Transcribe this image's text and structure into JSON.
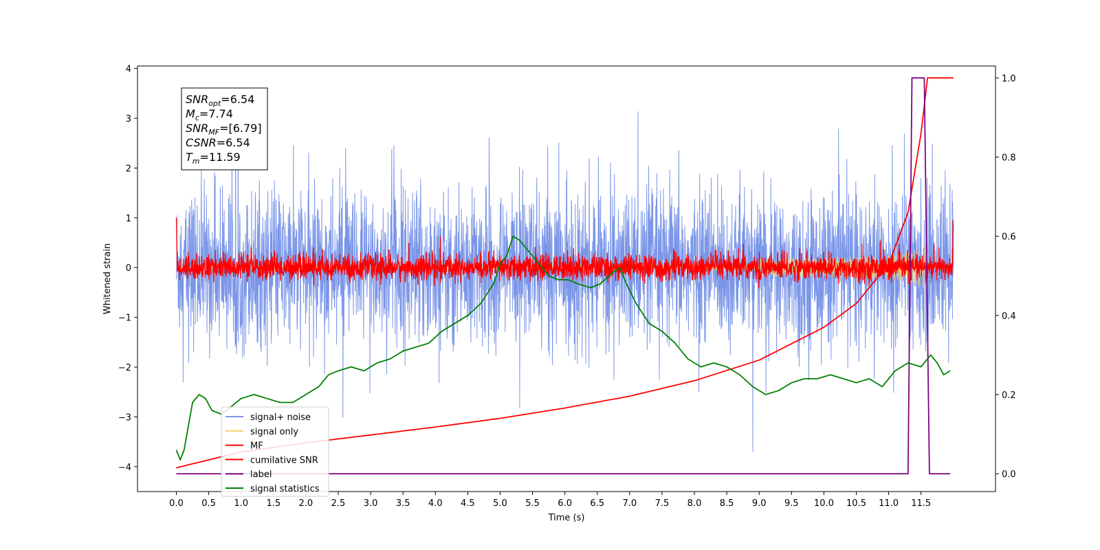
{
  "chart_data": {
    "type": "line",
    "title": "",
    "xlabel": "Time (s)",
    "ylabel": "Whitened strain",
    "y2label": "",
    "xlim": [
      -0.6,
      12.65
    ],
    "ylim": [
      -4.5,
      4.05
    ],
    "y2lim": [
      -0.045,
      1.03
    ],
    "x_ticks": [
      0.0,
      0.5,
      1.0,
      1.5,
      2.0,
      2.5,
      3.0,
      3.5,
      4.0,
      4.5,
      5.0,
      5.5,
      6.0,
      6.5,
      7.0,
      7.5,
      8.0,
      8.5,
      9.0,
      9.5,
      10.0,
      10.5,
      11.0,
      11.5
    ],
    "x_tick_labels": [
      "0.0",
      "0.5",
      "1.0",
      "1.5",
      "2.0",
      "2.5",
      "3.0",
      "3.5",
      "4.0",
      "4.5",
      "5.0",
      "5.5",
      "6.0",
      "6.5",
      "7.0",
      "7.5",
      "8.0",
      "8.5",
      "9.0",
      "9.5",
      "10.0",
      "10.5",
      "11.0",
      "11.5"
    ],
    "y_ticks": [
      4,
      3,
      2,
      1,
      0,
      -1,
      -2,
      -3,
      -4
    ],
    "y_tick_labels": [
      "4",
      "3",
      "2",
      "1",
      "0",
      "−1",
      "−2",
      "−3",
      "−4"
    ],
    "y2_ticks": [
      1.0,
      0.8,
      0.6,
      0.4,
      0.2,
      0.0
    ],
    "y2_tick_labels": [
      "1.0",
      "0.8",
      "0.6",
      "0.4",
      "0.2",
      "0.0"
    ],
    "grid": false,
    "legend_position": "lower-left",
    "series": [
      {
        "name": "signal+ noise",
        "axis": "left",
        "color": "#7b96e8",
        "kind": "noise",
        "x_range": [
          0.0,
          12.0
        ],
        "amplitude_sd": 0.75,
        "envelope_approx": [
          -2.3,
          2.4
        ]
      },
      {
        "name": "signal only",
        "axis": "left",
        "color": "#f5cf6b",
        "kind": "chirp",
        "x_range": [
          0.0,
          11.6
        ],
        "peak_amplitude": 0.45
      },
      {
        "name": "MF",
        "axis": "left",
        "color": "#ff0000",
        "kind": "noise",
        "x_range": [
          0.0,
          12.0
        ],
        "start_value": 1.0,
        "end_value": 0.95,
        "amplitude_sd": 0.12
      },
      {
        "name": "cumilative SNR",
        "axis": "right",
        "color": "#ff0000",
        "kind": "curve",
        "points": [
          [
            0.0,
            0.015
          ],
          [
            1.0,
            0.055
          ],
          [
            2.0,
            0.078
          ],
          [
            3.0,
            0.098
          ],
          [
            4.0,
            0.118
          ],
          [
            5.0,
            0.14
          ],
          [
            6.0,
            0.166
          ],
          [
            7.0,
            0.196
          ],
          [
            8.0,
            0.235
          ],
          [
            9.0,
            0.287
          ],
          [
            10.0,
            0.37
          ],
          [
            10.5,
            0.43
          ],
          [
            11.0,
            0.53
          ],
          [
            11.3,
            0.66
          ],
          [
            11.5,
            0.86
          ],
          [
            11.6,
            1.0
          ],
          [
            12.0,
            1.0
          ]
        ]
      },
      {
        "name": "label",
        "axis": "right",
        "color": "#800080",
        "kind": "step",
        "points": [
          [
            0.0,
            0.0
          ],
          [
            11.3,
            0.0
          ],
          [
            11.36,
            1.0
          ],
          [
            11.55,
            1.0
          ],
          [
            11.63,
            0.0
          ],
          [
            11.95,
            0.0
          ]
        ]
      },
      {
        "name": "signal statistics",
        "axis": "right",
        "color": "#008000",
        "kind": "curve",
        "points": [
          [
            0.0,
            0.06
          ],
          [
            0.06,
            0.035
          ],
          [
            0.12,
            0.06
          ],
          [
            0.25,
            0.18
          ],
          [
            0.35,
            0.2
          ],
          [
            0.45,
            0.19
          ],
          [
            0.55,
            0.16
          ],
          [
            0.7,
            0.15
          ],
          [
            0.85,
            0.17
          ],
          [
            1.0,
            0.19
          ],
          [
            1.2,
            0.2
          ],
          [
            1.4,
            0.19
          ],
          [
            1.6,
            0.18
          ],
          [
            1.8,
            0.18
          ],
          [
            2.0,
            0.2
          ],
          [
            2.2,
            0.22
          ],
          [
            2.35,
            0.25
          ],
          [
            2.5,
            0.26
          ],
          [
            2.7,
            0.27
          ],
          [
            2.9,
            0.26
          ],
          [
            3.1,
            0.28
          ],
          [
            3.3,
            0.29
          ],
          [
            3.5,
            0.31
          ],
          [
            3.7,
            0.32
          ],
          [
            3.9,
            0.33
          ],
          [
            4.1,
            0.36
          ],
          [
            4.3,
            0.38
          ],
          [
            4.5,
            0.4
          ],
          [
            4.7,
            0.43
          ],
          [
            4.9,
            0.48
          ],
          [
            5.0,
            0.53
          ],
          [
            5.1,
            0.55
          ],
          [
            5.2,
            0.6
          ],
          [
            5.3,
            0.59
          ],
          [
            5.45,
            0.56
          ],
          [
            5.6,
            0.53
          ],
          [
            5.75,
            0.5
          ],
          [
            5.9,
            0.49
          ],
          [
            6.05,
            0.49
          ],
          [
            6.2,
            0.48
          ],
          [
            6.4,
            0.47
          ],
          [
            6.55,
            0.48
          ],
          [
            6.75,
            0.51
          ],
          [
            6.85,
            0.52
          ],
          [
            6.95,
            0.48
          ],
          [
            7.1,
            0.43
          ],
          [
            7.3,
            0.38
          ],
          [
            7.5,
            0.36
          ],
          [
            7.7,
            0.33
          ],
          [
            7.9,
            0.29
          ],
          [
            8.1,
            0.27
          ],
          [
            8.3,
            0.28
          ],
          [
            8.5,
            0.27
          ],
          [
            8.7,
            0.25
          ],
          [
            8.9,
            0.22
          ],
          [
            9.1,
            0.2
          ],
          [
            9.3,
            0.21
          ],
          [
            9.5,
            0.23
          ],
          [
            9.7,
            0.24
          ],
          [
            9.9,
            0.24
          ],
          [
            10.1,
            0.25
          ],
          [
            10.3,
            0.24
          ],
          [
            10.5,
            0.23
          ],
          [
            10.7,
            0.24
          ],
          [
            10.9,
            0.22
          ],
          [
            11.1,
            0.26
          ],
          [
            11.3,
            0.28
          ],
          [
            11.5,
            0.27
          ],
          [
            11.65,
            0.3
          ],
          [
            11.75,
            0.28
          ],
          [
            11.85,
            0.25
          ],
          [
            11.95,
            0.26
          ]
        ]
      }
    ],
    "annotation_lines": [
      {
        "main": "SNR",
        "sub": "opt",
        "rest": "=6.54"
      },
      {
        "main": "M",
        "sub": "c",
        "rest": "=7.74"
      },
      {
        "main": "SNR",
        "sub": "MF",
        "rest": "=[6.79]"
      },
      {
        "main": "CSNR",
        "sub": "",
        "rest": "=6.54"
      },
      {
        "main": "T",
        "sub": "m",
        "rest": "=11.59"
      }
    ]
  }
}
